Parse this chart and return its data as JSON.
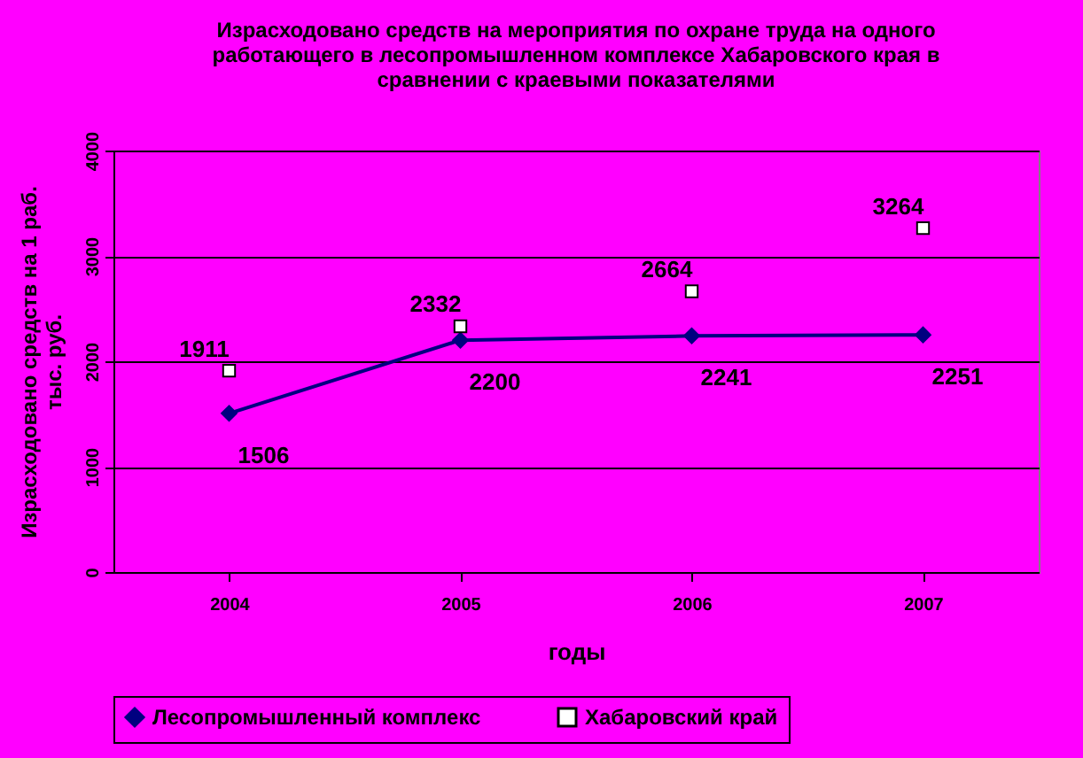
{
  "chart_data": {
    "type": "line",
    "title": "Израсходовано средств на мероприятия по охране труда на одного\nработающего в лесопромышленном комплексе Хабаровского края в\nсравнении с краевыми показателями",
    "xlabel": "годы",
    "ylabel": "Израсходовано средств на 1 раб.\nтыс. руб.",
    "categories": [
      "2004",
      "2005",
      "2006",
      "2007"
    ],
    "series": [
      {
        "name": "Лесопромышленный комплекс",
        "type": "line",
        "marker": "diamond",
        "color": "#000080",
        "values": [
          1506,
          2200,
          2241,
          2251
        ]
      },
      {
        "name": "Хабаровский край",
        "type": "scatter",
        "marker": "square",
        "color": "#000000",
        "values": [
          1911,
          2332,
          2664,
          3264
        ]
      }
    ],
    "ylim": [
      0,
      4000
    ],
    "yticks": [
      0,
      1000,
      2000,
      3000,
      4000
    ],
    "grid": "y",
    "legend": "bottom",
    "data_labels": true
  }
}
